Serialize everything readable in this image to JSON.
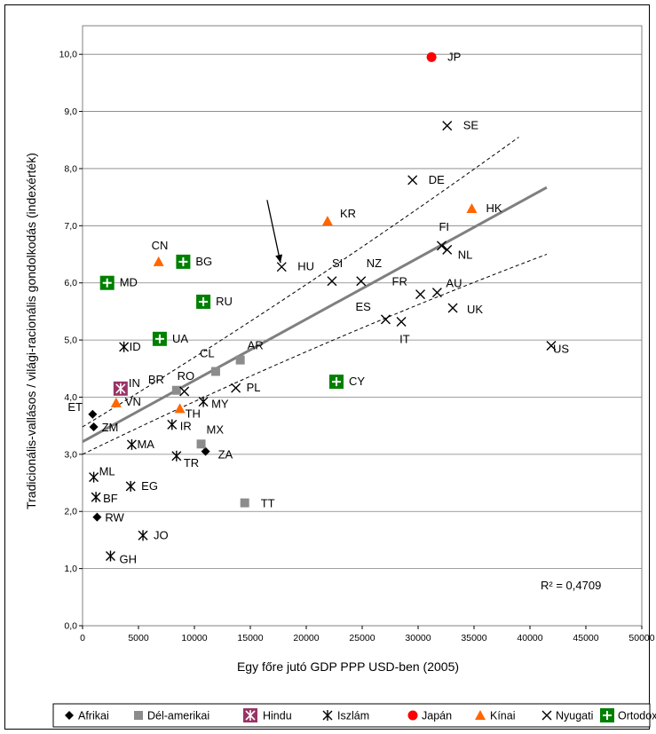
{
  "chart_data": {
    "type": "scatter",
    "xlabel": "Egy főre jutó GDP PPP USD-ben (2005)",
    "ylabel": "Tradicionális-vallásos / világi-racionális gondolkodás (indexérték)",
    "xlim": [
      0,
      50000
    ],
    "ylim": [
      0,
      10.5
    ],
    "xticks": [
      "0",
      "5000",
      "10000",
      "15000",
      "20000",
      "25000",
      "30000",
      "35000",
      "40000",
      "45000",
      "50000"
    ],
    "yticks": [
      "0,0",
      "1,0",
      "2,0",
      "3,0",
      "4,0",
      "5,0",
      "6,0",
      "7,0",
      "8,0",
      "9,0",
      "10,0"
    ],
    "grid": "horizontal",
    "legend_position": "bottom",
    "annotation": "R² = 0,4709",
    "trend": {
      "x": [
        0,
        41500
      ],
      "y": [
        3.22,
        7.67
      ]
    },
    "confidence_upper": {
      "x": [
        0,
        39000
      ],
      "y": [
        3.48,
        8.55
      ]
    },
    "confidence_lower": {
      "x": [
        0,
        41500
      ],
      "y": [
        3.0,
        6.5
      ]
    },
    "arrow": {
      "from": [
        16500,
        7.45
      ],
      "to": [
        17700,
        6.35
      ]
    },
    "series": [
      {
        "name": "Afrikai",
        "marker": "diamond",
        "color": "#000000",
        "points": [
          {
            "label": "ET",
            "x": 900,
            "y": 3.7
          },
          {
            "label": "ZM",
            "x": 1000,
            "y": 3.48
          },
          {
            "label": "RW",
            "x": 1300,
            "y": 1.9
          },
          {
            "label": "ZA",
            "x": 11000,
            "y": 3.05
          }
        ]
      },
      {
        "name": "Dél-amerikai",
        "marker": "square",
        "color": "#8c8c8c",
        "points": [
          {
            "label": "BR",
            "x": 8400,
            "y": 4.12
          },
          {
            "label": "CL",
            "x": 11900,
            "y": 4.45
          },
          {
            "label": "AR",
            "x": 14100,
            "y": 4.65
          },
          {
            "label": "MX",
            "x": 10600,
            "y": 3.18
          },
          {
            "label": "TT",
            "x": 14500,
            "y": 2.15
          }
        ]
      },
      {
        "name": "Hindu",
        "marker": "star-box",
        "color": "#993366",
        "points": [
          {
            "label": "IN",
            "x": 3400,
            "y": 4.15
          }
        ]
      },
      {
        "name": "Iszlám",
        "marker": "asterisk",
        "color": "#000000",
        "points": [
          {
            "label": "ID",
            "x": 3700,
            "y": 4.88
          },
          {
            "label": "IR",
            "x": 8000,
            "y": 3.52
          },
          {
            "label": "MA",
            "x": 4400,
            "y": 3.17
          },
          {
            "label": "TR",
            "x": 8400,
            "y": 2.97
          },
          {
            "label": "ML",
            "x": 1000,
            "y": 2.6
          },
          {
            "label": "BF",
            "x": 1200,
            "y": 2.25
          },
          {
            "label": "EG",
            "x": 4300,
            "y": 2.44
          },
          {
            "label": "JO",
            "x": 5400,
            "y": 1.58
          },
          {
            "label": "GH",
            "x": 2500,
            "y": 1.22
          },
          {
            "label": "MY",
            "x": 10800,
            "y": 3.92
          }
        ]
      },
      {
        "name": "Japán",
        "marker": "circle",
        "color": "#ff0000",
        "points": [
          {
            "label": "JP",
            "x": 31200,
            "y": 9.95
          }
        ]
      },
      {
        "name": "Kínai",
        "marker": "triangle",
        "color": "#ff6600",
        "points": [
          {
            "label": "CN",
            "x": 6800,
            "y": 6.37
          },
          {
            "label": "KR",
            "x": 21900,
            "y": 7.08
          },
          {
            "label": "HK",
            "x": 34800,
            "y": 7.3
          },
          {
            "label": "VN",
            "x": 3000,
            "y": 3.9
          },
          {
            "label": "TH",
            "x": 8700,
            "y": 3.8
          }
        ]
      },
      {
        "name": "Nyugati",
        "marker": "x",
        "color": "#000000",
        "points": [
          {
            "label": "SE",
            "x": 32600,
            "y": 8.75
          },
          {
            "label": "DE",
            "x": 29500,
            "y": 7.8
          },
          {
            "label": "FI",
            "x": 32100,
            "y": 6.65
          },
          {
            "label": "NL",
            "x": 32600,
            "y": 6.58
          },
          {
            "label": "HU",
            "x": 17800,
            "y": 6.28
          },
          {
            "label": "SI",
            "x": 22300,
            "y": 6.03
          },
          {
            "label": "NZ",
            "x": 24900,
            "y": 6.03
          },
          {
            "label": "FR",
            "x": 30200,
            "y": 5.8
          },
          {
            "label": "AU",
            "x": 31700,
            "y": 5.83
          },
          {
            "label": "UK",
            "x": 33100,
            "y": 5.56
          },
          {
            "label": "ES",
            "x": 27100,
            "y": 5.36
          },
          {
            "label": "IT",
            "x": 28500,
            "y": 5.32
          },
          {
            "label": "US",
            "x": 41900,
            "y": 4.9
          },
          {
            "label": "PL",
            "x": 13700,
            "y": 4.16
          },
          {
            "label": "RO",
            "x": 9100,
            "y": 4.1
          }
        ]
      },
      {
        "name": "Ortodox",
        "marker": "plus-box",
        "color": "#008000",
        "points": [
          {
            "label": "MD",
            "x": 2200,
            "y": 6.0
          },
          {
            "label": "BG",
            "x": 9000,
            "y": 6.37
          },
          {
            "label": "RU",
            "x": 10800,
            "y": 5.67
          },
          {
            "label": "UA",
            "x": 6900,
            "y": 5.02
          },
          {
            "label": "CY",
            "x": 22700,
            "y": 4.27
          }
        ]
      }
    ]
  }
}
